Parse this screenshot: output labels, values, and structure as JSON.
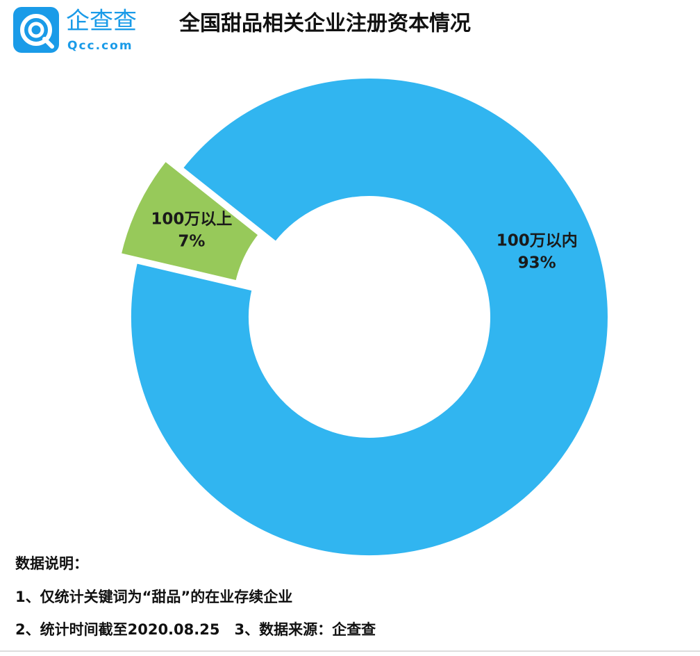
{
  "logo": {
    "name": "企查查",
    "domain": "Qcc.com"
  },
  "chart_data": {
    "type": "donut",
    "title": "全国甜品相关企业注册资本情况",
    "categories": [
      "100万以内",
      "100万以上"
    ],
    "values": [
      93,
      7
    ],
    "value_labels": [
      "93%",
      "7%"
    ],
    "colors": [
      "#31b5f0",
      "#97c95a"
    ]
  },
  "notes": {
    "heading": "数据说明：",
    "lines": [
      "1、仅统计关键词为“甜品”的在业存续企业",
      "2、统计时间截至2020.08.25　3、数据来源：企查查"
    ]
  }
}
